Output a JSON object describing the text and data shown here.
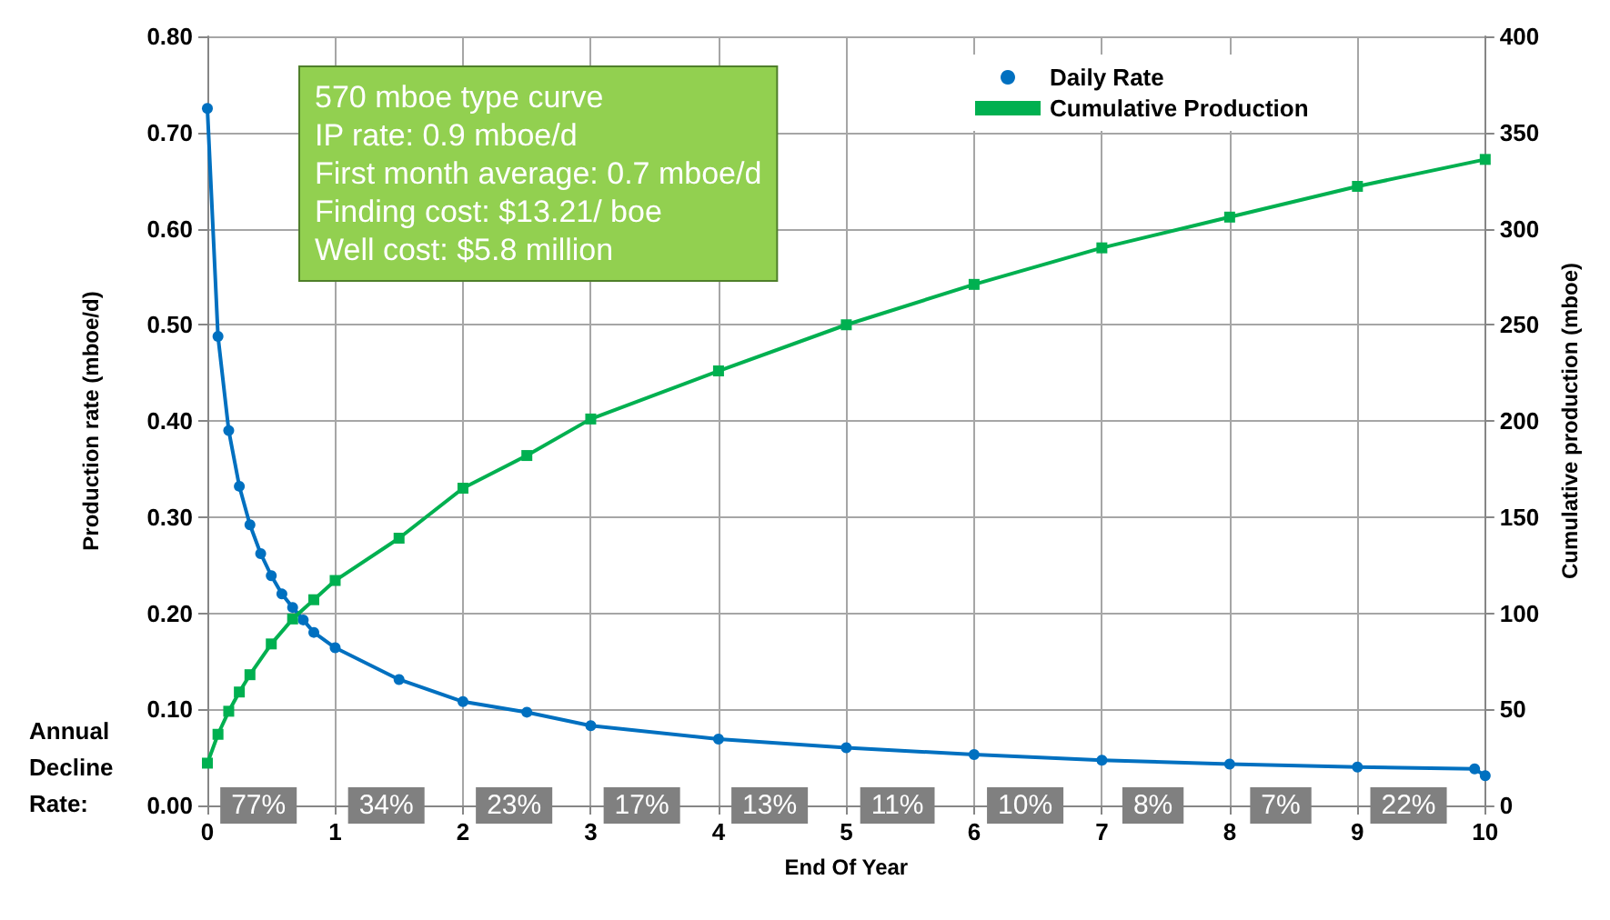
{
  "chart_data": {
    "type": "line",
    "xlabel": "End Of Year",
    "ylabel": "Production rate (mboe/d)",
    "y2label": "Cumulative production (mboe)",
    "xlim": [
      0,
      10
    ],
    "xticks": [
      0,
      1,
      2,
      3,
      4,
      5,
      6,
      7,
      8,
      9,
      10
    ],
    "ylim": [
      0,
      0.8
    ],
    "yticks": [
      {
        "value": 0,
        "label": "0.00"
      },
      {
        "value": 0.1,
        "label": "0.10"
      },
      {
        "value": 0.2,
        "label": "0.20"
      },
      {
        "value": 0.3,
        "label": "0.30"
      },
      {
        "value": 0.4,
        "label": "0.40"
      },
      {
        "value": 0.5,
        "label": "0.50"
      },
      {
        "value": 0.6,
        "label": "0.60"
      },
      {
        "value": 0.7,
        "label": "0.70"
      },
      {
        "value": 0.8,
        "label": "0.80"
      }
    ],
    "y2lim": [
      0,
      400
    ],
    "y2ticks": [
      0,
      50,
      100,
      150,
      200,
      250,
      300,
      350,
      400
    ],
    "grid": true,
    "legend": "top",
    "line_style": "solid",
    "series": [
      {
        "name": "Daily Rate",
        "color": "#0070c0",
        "marker": "circle",
        "x": [
          0,
          0.083,
          0.167,
          0.25,
          0.333,
          0.417,
          0.5,
          0.583,
          0.667,
          0.75,
          0.833,
          1,
          1.5,
          2,
          2.5,
          3,
          4,
          5,
          6,
          7,
          8,
          9,
          9.917,
          10
        ],
        "values": [
          0.725,
          0.488,
          0.39,
          0.332,
          0.292,
          0.262,
          0.239,
          0.22,
          0.206,
          0.193,
          0.18,
          0.164,
          0.131,
          0.108,
          0.097,
          0.083,
          0.069,
          0.06,
          0.053,
          0.047,
          0.043,
          0.04,
          0.038,
          0.031
        ]
      },
      {
        "name": "Cumulative Production",
        "color": "#00b050",
        "marker": "square",
        "axis": "y2",
        "x": [
          0,
          0.083,
          0.167,
          0.25,
          0.333,
          0.5,
          0.667,
          0.833,
          1,
          1.5,
          2,
          2.5,
          3,
          4,
          5,
          6,
          7,
          8,
          9,
          10
        ],
        "values": [
          22,
          37,
          49,
          59,
          68,
          84,
          97,
          107,
          117,
          139,
          165,
          182,
          201,
          226,
          250,
          271,
          290,
          306,
          322,
          336
        ]
      }
    ],
    "annotations": [
      "570 mboe type curve\nIP rate: 0.9 mboe/d\nFirst month average: 0.7 mboe/d\nFinding cost: $13.21/ boe\nWell cost: $5.8 million",
      "Annual Decline Rate:",
      {
        "text": "77%",
        "x": 0.4,
        "y": 0
      },
      {
        "text": "34%",
        "x": 1.4,
        "y": 0
      },
      {
        "text": "23%",
        "x": 2.4,
        "y": 0
      },
      {
        "text": "17%",
        "x": 3.4,
        "y": 0
      },
      {
        "text": "13%",
        "x": 4.4,
        "y": 0
      },
      {
        "text": "11%",
        "x": 5.4,
        "y": 0
      },
      {
        "text": "10%",
        "x": 6.4,
        "y": 0
      },
      {
        "text": "8%",
        "x": 7.4,
        "y": 0
      },
      {
        "text": "7%",
        "x": 8.4,
        "y": 0
      },
      {
        "text": "22%",
        "x": 9.4,
        "y": 0
      }
    ]
  }
}
